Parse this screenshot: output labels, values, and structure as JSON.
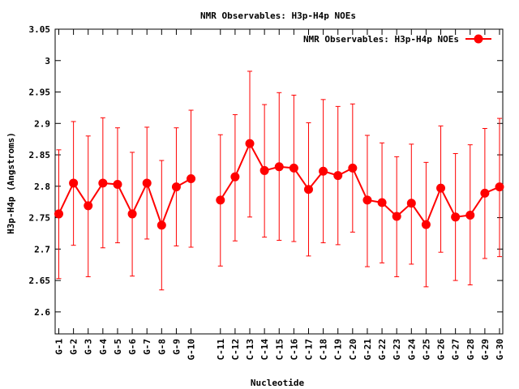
{
  "chart_data": {
    "type": "line",
    "title": "NMR Observables: H3p-H4p NOEs",
    "xlabel": "Nucleotide",
    "ylabel": "H3p-H4p (Angstroms)",
    "ylim": [
      2.565,
      3.05
    ],
    "yticks": [
      "2.6",
      "2.65",
      "2.7",
      "2.75",
      "2.8",
      "2.85",
      "2.9",
      "2.95",
      "3",
      "3.05"
    ],
    "legend": {
      "label": "NMR Observables: H3p-H4p NOEs",
      "position": "top-right"
    },
    "grid": false,
    "categories": [
      "G-1",
      "G-2",
      "G-3",
      "G-4",
      "G-5",
      "G-6",
      "G-7",
      "G-8",
      "G-9",
      "G-10",
      "",
      "C-11",
      "C-12",
      "C-13",
      "C-14",
      "C-15",
      "C-16",
      "C-17",
      "C-18",
      "C-19",
      "C-20",
      "G-21",
      "G-22",
      "G-23",
      "G-24",
      "G-25",
      "G-26",
      "G-27",
      "G-28",
      "G-29",
      "G-30"
    ],
    "series": [
      {
        "name": "NMR Observables: H3p-H4p NOEs",
        "color": "#ff0000",
        "values": [
          2.756,
          2.805,
          2.769,
          2.805,
          2.803,
          2.756,
          2.805,
          2.738,
          2.799,
          2.812,
          null,
          2.778,
          2.815,
          2.868,
          2.825,
          2.831,
          2.829,
          2.795,
          2.824,
          2.817,
          2.829,
          2.778,
          2.774,
          2.752,
          2.773,
          2.739,
          2.797,
          2.751,
          2.754,
          2.789,
          2.799
        ],
        "err_low": [
          2.653,
          2.706,
          2.656,
          2.702,
          2.71,
          2.657,
          2.716,
          2.635,
          2.705,
          2.703,
          null,
          2.673,
          2.713,
          2.751,
          2.719,
          2.714,
          2.712,
          2.689,
          2.71,
          2.707,
          2.727,
          2.672,
          2.678,
          2.656,
          2.676,
          2.64,
          2.695,
          2.65,
          2.643,
          2.685,
          2.688
        ],
        "err_high": [
          2.858,
          2.903,
          2.88,
          2.909,
          2.893,
          2.854,
          2.894,
          2.841,
          2.893,
          2.921,
          null,
          2.882,
          2.914,
          2.983,
          2.93,
          2.949,
          2.945,
          2.901,
          2.938,
          2.927,
          2.931,
          2.881,
          2.869,
          2.847,
          2.867,
          2.838,
          2.896,
          2.852,
          2.866,
          2.892,
          2.908
        ]
      }
    ]
  }
}
